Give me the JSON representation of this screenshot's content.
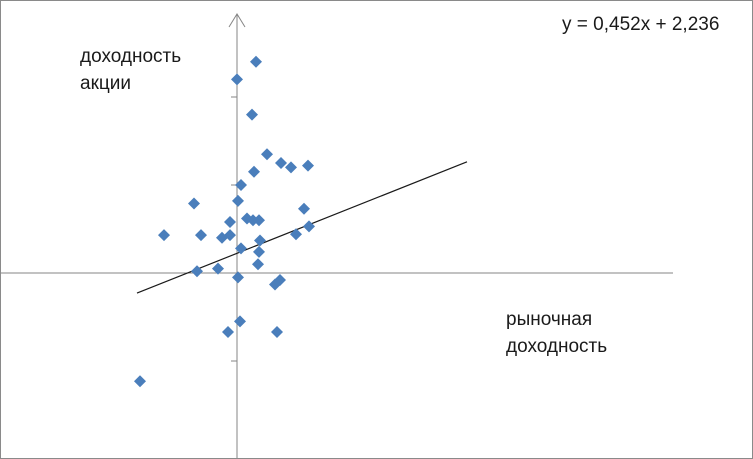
{
  "chart_data": {
    "type": "scatter",
    "title": "",
    "xlabel": [
      "рыночная",
      "доходность"
    ],
    "ylabel": [
      "доходность",
      "акции"
    ],
    "trendline": {
      "slope": 0.452,
      "intercept": 2.236,
      "label": "y = 0,452x + 2,236",
      "x_range": [
        -10,
        23
      ]
    },
    "xlim": [
      -15,
      29
    ],
    "ylim": [
      -20,
      30
    ],
    "y_ticks": [
      -10,
      0,
      10,
      20
    ],
    "grid": false,
    "legend": "none",
    "marker_color": "#4a7ebb",
    "line_color": "#1a1a1a",
    "axis_color": "#868686",
    "points": [
      {
        "x": 0.0,
        "y": 22.0
      },
      {
        "x": 1.9,
        "y": 24.0
      },
      {
        "x": 1.5,
        "y": 18.0
      },
      {
        "x": 3.0,
        "y": 13.5
      },
      {
        "x": 4.4,
        "y": 12.5
      },
      {
        "x": 5.4,
        "y": 12.0
      },
      {
        "x": 7.1,
        "y": 12.2
      },
      {
        "x": 1.7,
        "y": 11.5
      },
      {
        "x": 0.4,
        "y": 10.0
      },
      {
        "x": 0.1,
        "y": 8.2
      },
      {
        "x": -4.3,
        "y": 7.9
      },
      {
        "x": 6.7,
        "y": 7.3
      },
      {
        "x": 1.0,
        "y": 6.2
      },
      {
        "x": 1.6,
        "y": 6.0
      },
      {
        "x": 2.2,
        "y": 6.0
      },
      {
        "x": -0.7,
        "y": 5.8
      },
      {
        "x": 5.9,
        "y": 4.4
      },
      {
        "x": 7.2,
        "y": 5.3
      },
      {
        "x": -7.3,
        "y": 4.3
      },
      {
        "x": -3.6,
        "y": 4.3
      },
      {
        "x": -1.5,
        "y": 4.0
      },
      {
        "x": -0.7,
        "y": 4.3
      },
      {
        "x": 2.3,
        "y": 3.7
      },
      {
        "x": 0.4,
        "y": 2.8
      },
      {
        "x": 2.2,
        "y": 2.4
      },
      {
        "x": 2.1,
        "y": 1.0
      },
      {
        "x": -4.0,
        "y": 0.2
      },
      {
        "x": -1.9,
        "y": 0.5
      },
      {
        "x": 0.1,
        "y": -0.5
      },
      {
        "x": 4.3,
        "y": -0.8
      },
      {
        "x": 3.8,
        "y": -1.3
      },
      {
        "x": 0.3,
        "y": -5.5
      },
      {
        "x": -0.9,
        "y": -6.7
      },
      {
        "x": 4.0,
        "y": -6.7
      },
      {
        "x": -9.7,
        "y": -12.3
      }
    ]
  }
}
